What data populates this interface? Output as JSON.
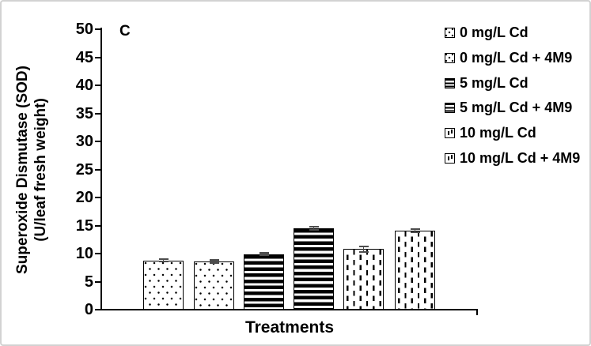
{
  "figure": {
    "panel_label": "C"
  },
  "chart_data": {
    "type": "bar",
    "title": "",
    "panel_label": "C",
    "xlabel": "Treatments",
    "ylabel": "Superoxide Dismutase (SOD) (U/leaf fresh weight)",
    "ylabel_line1": "Superoxide Dismutase (SOD)",
    "ylabel_line2": "(U/leaf fresh weight)",
    "ylim": [
      0,
      50
    ],
    "ytick_step": 5,
    "grid": false,
    "legend_position": "top-right",
    "categories": [
      "0 mg/L Cd",
      "0 mg/L Cd + 4M9",
      "5 mg/L Cd",
      "5 mg/L Cd + 4M9",
      "10 mg/L Cd",
      "10 mg/L Cd + 4M9"
    ],
    "values": [
      8.8,
      8.6,
      9.9,
      14.5,
      10.8,
      14.1
    ],
    "errors": [
      0.2,
      0.2,
      0.2,
      0.3,
      0.5,
      0.3
    ],
    "patterns": [
      "dots",
      "dots",
      "hstripes",
      "hstripes",
      "vdashes",
      "vdashes"
    ],
    "colors": {
      "bar_fill": "#ffffff",
      "pattern": "#000000",
      "axis": "#000000",
      "text": "#000000",
      "error_bar": "#4d4d4d",
      "figure_border": "#d2d2d2"
    }
  }
}
